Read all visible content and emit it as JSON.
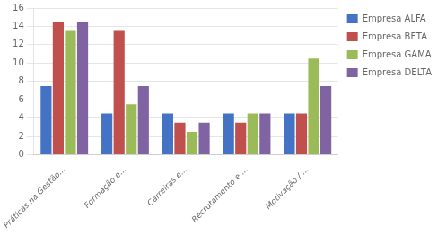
{
  "chart_data": {
    "type": "bar",
    "categories": [
      "Práticas na Gestão...",
      "Formação e...",
      "Carreiras e...",
      "Recrutamento e ...",
      "Motivação / ..."
    ],
    "series": [
      {
        "name": "Empresa ALFA",
        "color": "#4472C4",
        "values": [
          7.5,
          4.5,
          4.5,
          4.5,
          4.5
        ]
      },
      {
        "name": "Empresa BETA",
        "color": "#C0504D",
        "values": [
          14.5,
          13.5,
          3.5,
          3.5,
          4.5
        ]
      },
      {
        "name": "Empresa GAMA",
        "color": "#9BBB59",
        "values": [
          13.5,
          5.5,
          2.5,
          4.5,
          10.5
        ]
      },
      {
        "name": "Empresa DELTA",
        "color": "#8064A2",
        "values": [
          14.5,
          7.5,
          3.5,
          4.5,
          7.5
        ]
      }
    ],
    "ylim": [
      0,
      16
    ],
    "yticks": [
      0,
      2,
      4,
      6,
      8,
      10,
      12,
      14,
      16
    ],
    "grid": true,
    "legend": "right"
  }
}
